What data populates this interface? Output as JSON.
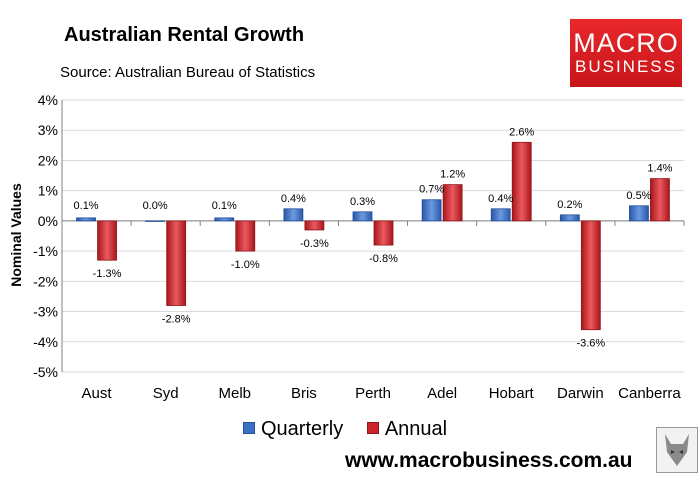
{
  "header": {
    "title": "Australian Rental Growth",
    "subtitle": "Source: Australian Bureau of Statistics"
  },
  "logo": {
    "line1": "MACRO",
    "line2": "BUSINESS"
  },
  "footer": {
    "url": "www.macrobusiness.com.au"
  },
  "colors": {
    "quarterly": "#3b6fc4",
    "annual": "#c9252b",
    "grid": "#d9d9d9",
    "axis": "#808080"
  },
  "chart_data": {
    "type": "bar",
    "title": "Australian Rental Growth",
    "subtitle": "Source: Australian Bureau of Statistics",
    "ylabel": "Nominal Values",
    "xlabel": "",
    "categories": [
      "Aust",
      "Syd",
      "Melb",
      "Bris",
      "Perth",
      "Adel",
      "Hobart",
      "Darwin",
      "Canberra"
    ],
    "series": [
      {
        "name": "Quarterly",
        "values": [
          0.1,
          0.0,
          0.1,
          0.4,
          0.3,
          0.7,
          0.4,
          0.2,
          0.5
        ],
        "labels": [
          "0.1%",
          "0.0%",
          "0.1%",
          "0.4%",
          "0.3%",
          "0.7%",
          "0.4%",
          "0.2%",
          "0.5%"
        ]
      },
      {
        "name": "Annual",
        "values": [
          -1.3,
          -2.8,
          -1.0,
          -0.3,
          -0.8,
          1.2,
          2.6,
          -3.6,
          1.4
        ],
        "labels": [
          "-1.3%",
          "-2.8%",
          "-1.0%",
          "-0.3%",
          "-0.8%",
          "1.2%",
          "2.6%",
          "-3.6%",
          "1.4%"
        ]
      }
    ],
    "ylim": [
      -5,
      4
    ],
    "yticks": [
      4,
      3,
      2,
      1,
      0,
      -1,
      -2,
      -3,
      -4,
      -5
    ],
    "ytick_labels": [
      "4%",
      "3%",
      "2%",
      "1%",
      "0%",
      "-1%",
      "-2%",
      "-3%",
      "-4%",
      "-5%"
    ],
    "grid": true,
    "legend_position": "bottom"
  }
}
